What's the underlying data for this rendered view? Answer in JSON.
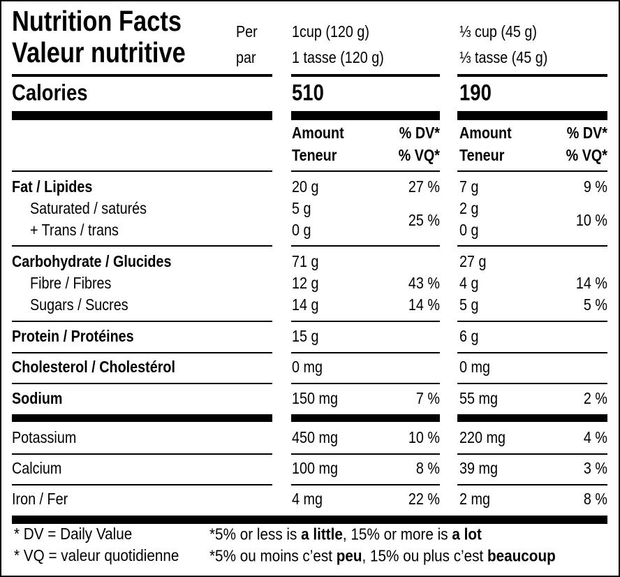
{
  "header": {
    "title_en": "Nutrition Facts",
    "title_fr": "Valeur nutritive",
    "per_en": "Per",
    "per_fr": "par",
    "serving1_en": "1cup (120 g)",
    "serving1_fr": "1 tasse (120 g)",
    "serving2_en": "⅓ cup (45 g)",
    "serving2_fr": "⅓ tasse (45 g)"
  },
  "calories": {
    "label": "Calories",
    "col1": "510",
    "col2": "190"
  },
  "column_headers": {
    "amount_en": "Amount",
    "amount_fr": "Teneur",
    "dv_en": "% DV*",
    "dv_fr": "% VQ*"
  },
  "fat": {
    "label": "Fat / Lipides",
    "amount1": "20 g",
    "dv1": "27 %",
    "amount2": "7 g",
    "dv2": "9 %"
  },
  "saturated": {
    "label": "Saturated / saturés",
    "amount1": "5 g",
    "amount2": "2 g"
  },
  "trans": {
    "label": "+ Trans / trans",
    "amount1": "0 g",
    "amount2": "0 g"
  },
  "saturated_trans": {
    "dv1": "25 %",
    "dv2": "10 %"
  },
  "carbohydrate": {
    "label": "Carbohydrate / Glucides",
    "amount1": "71 g",
    "amount2": "27 g"
  },
  "fibre": {
    "label": "Fibre / Fibres",
    "amount1": "12 g",
    "dv1": "43 %",
    "amount2": "4 g",
    "dv2": "14 %"
  },
  "sugars": {
    "label": "Sugars / Sucres",
    "amount1": "14 g",
    "dv1": "14 %",
    "amount2": "5 g",
    "dv2": "5 %"
  },
  "protein": {
    "label": "Protein / Protéines",
    "amount1": "15 g",
    "amount2": "6 g"
  },
  "cholesterol": {
    "label": "Cholesterol / Cholestérol",
    "amount1": "0 mg",
    "amount2": "0 mg"
  },
  "sodium": {
    "label": "Sodium",
    "amount1": "150 mg",
    "dv1": "7 %",
    "amount2": "55 mg",
    "dv2": "2 %"
  },
  "potassium": {
    "label": "Potassium",
    "amount1": "450 mg",
    "dv1": "10 %",
    "amount2": "220 mg",
    "dv2": "4 %"
  },
  "calcium": {
    "label": "Calcium",
    "amount1": "100 mg",
    "dv1": "8 %",
    "amount2": "39 mg",
    "dv2": "3 %"
  },
  "iron": {
    "label": "Iron / Fer",
    "amount1": "4 mg",
    "dv1": "22 %",
    "amount2": "2 mg",
    "dv2": "8 %"
  },
  "footnote": {
    "dv_en": "* DV = Daily Value",
    "dv_fr": "* VQ = valeur quotidienne",
    "scale_en": [
      "*5% or less is ",
      "a little",
      ", 15% or more is ",
      "a lot"
    ],
    "scale_fr": [
      "*5% ou moins c’est ",
      "peu",
      ", 15% ou plus c’est ",
      "beaucoup"
    ]
  }
}
